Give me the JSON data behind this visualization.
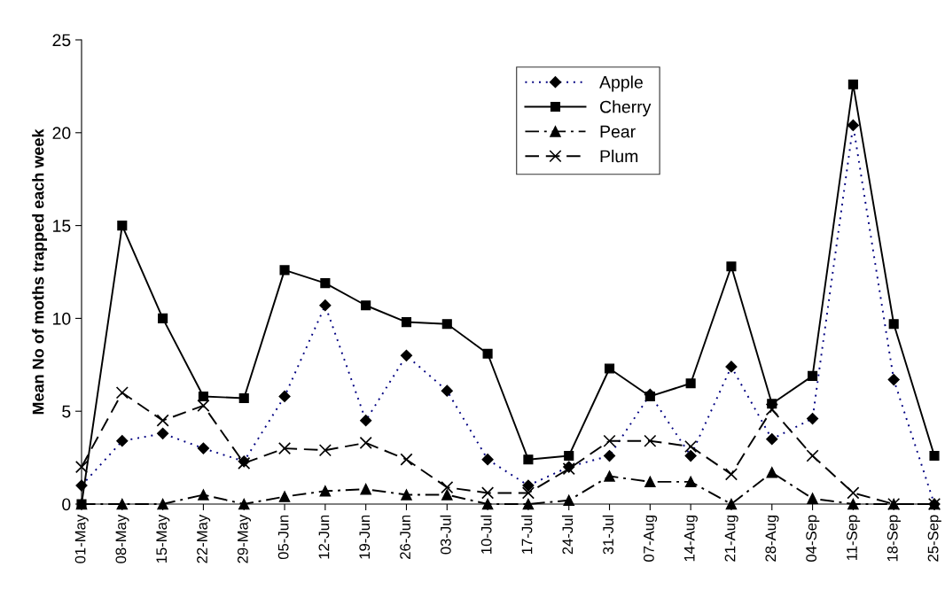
{
  "chart_data": {
    "type": "line",
    "ylabel": "Mean No of moths trapped each week",
    "categories": [
      "01-May",
      "08-May",
      "15-May",
      "22-May",
      "29-May",
      "05-Jun",
      "12-Jun",
      "19-Jun",
      "26-Jun",
      "03-Jul",
      "10-Jul",
      "17-Jul",
      "24-Jul",
      "31-Jul",
      "07-Aug",
      "14-Aug",
      "21-Aug",
      "28-Aug",
      "04-Sep",
      "11-Sep",
      "18-Sep",
      "25-Sep"
    ],
    "series": [
      {
        "name": "Apple",
        "color": "#000080",
        "marker": "diamond",
        "line_style": "dotted",
        "values": [
          1.0,
          3.4,
          3.8,
          3.0,
          2.3,
          5.8,
          10.7,
          4.5,
          8.0,
          6.1,
          2.4,
          1.0,
          2.0,
          2.6,
          5.9,
          2.6,
          7.4,
          3.5,
          4.6,
          20.4,
          6.7,
          0
        ]
      },
      {
        "name": "Cherry",
        "color": "#000000",
        "marker": "square",
        "line_style": "solid",
        "values": [
          0,
          15.0,
          10.0,
          5.8,
          5.7,
          12.6,
          11.9,
          10.7,
          9.8,
          9.7,
          8.1,
          2.4,
          2.6,
          7.3,
          5.8,
          6.5,
          12.8,
          5.4,
          6.9,
          22.6,
          9.7,
          2.6
        ]
      },
      {
        "name": "Pear",
        "color": "#000000",
        "marker": "triangle",
        "line_style": "dashdot",
        "values": [
          0,
          0,
          0,
          0.5,
          0,
          0.4,
          0.7,
          0.8,
          0.5,
          0.5,
          0,
          0,
          0.2,
          1.5,
          1.2,
          1.2,
          0,
          1.7,
          0.3,
          0,
          0,
          0
        ]
      },
      {
        "name": "Plum",
        "color": "#000000",
        "marker": "cross",
        "line_style": "dashed",
        "values": [
          2.0,
          6.0,
          4.5,
          5.3,
          2.2,
          3.0,
          2.9,
          3.3,
          2.4,
          0.9,
          0.6,
          0.6,
          1.9,
          3.4,
          3.4,
          3.1,
          1.6,
          5.1,
          2.6,
          0.6,
          0,
          0
        ]
      }
    ],
    "ylim": [
      0,
      25
    ],
    "yticks": [
      0,
      5,
      10,
      15,
      20,
      25
    ],
    "grid": false,
    "legend": "top right"
  }
}
